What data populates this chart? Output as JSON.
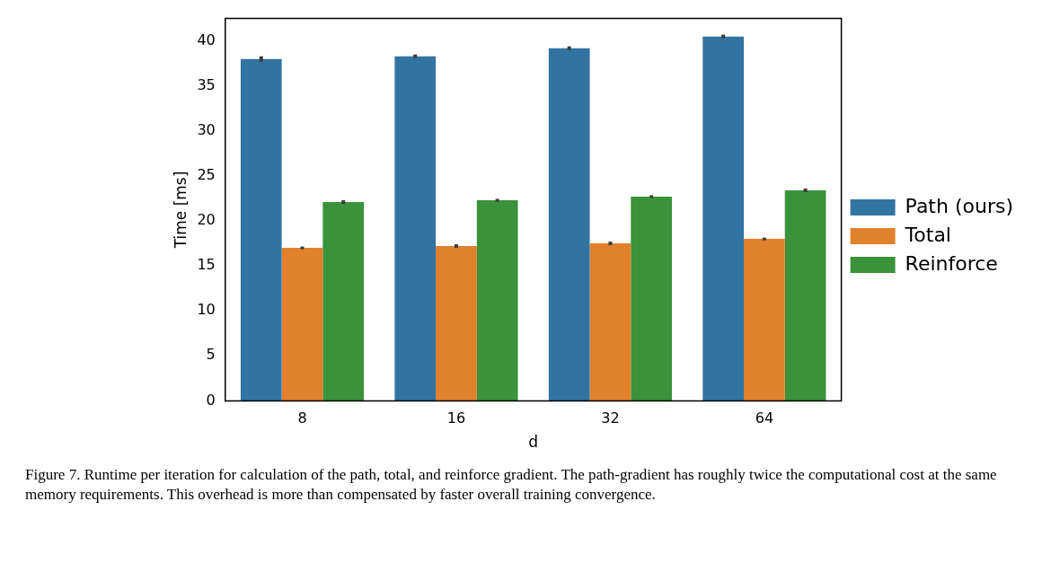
{
  "chart_data": {
    "type": "bar",
    "xlabel": "d",
    "ylabel": "Time [ms]",
    "categories": [
      "8",
      "16",
      "32",
      "64"
    ],
    "series": [
      {
        "name": "Path (ours)",
        "color": "#3274a1",
        "values": [
          38.0,
          38.3,
          39.2,
          40.5
        ],
        "errors": [
          0.3,
          0.2,
          0.2,
          0.2
        ]
      },
      {
        "name": "Total",
        "color": "#e1812c",
        "values": [
          17.0,
          17.2,
          17.5,
          18.0
        ],
        "errors": [
          0.15,
          0.2,
          0.2,
          0.15
        ]
      },
      {
        "name": "Reinforce",
        "color": "#3a923a",
        "values": [
          22.1,
          22.3,
          22.7,
          23.4
        ],
        "errors": [
          0.2,
          0.15,
          0.15,
          0.2
        ]
      }
    ],
    "ylim": [
      0,
      42.5
    ],
    "yticks": [
      0,
      5,
      10,
      15,
      20,
      25,
      30,
      35,
      40
    ],
    "grid": false,
    "legend": "right",
    "annotations": [
      "Figure 7. Runtime per iteration for calculation of the path, total, and reinforce gradient. The path-gradient has roughly twice the computational cost at the same memory requirements. This overhead is more than compensated by faster overall training convergence."
    ]
  }
}
